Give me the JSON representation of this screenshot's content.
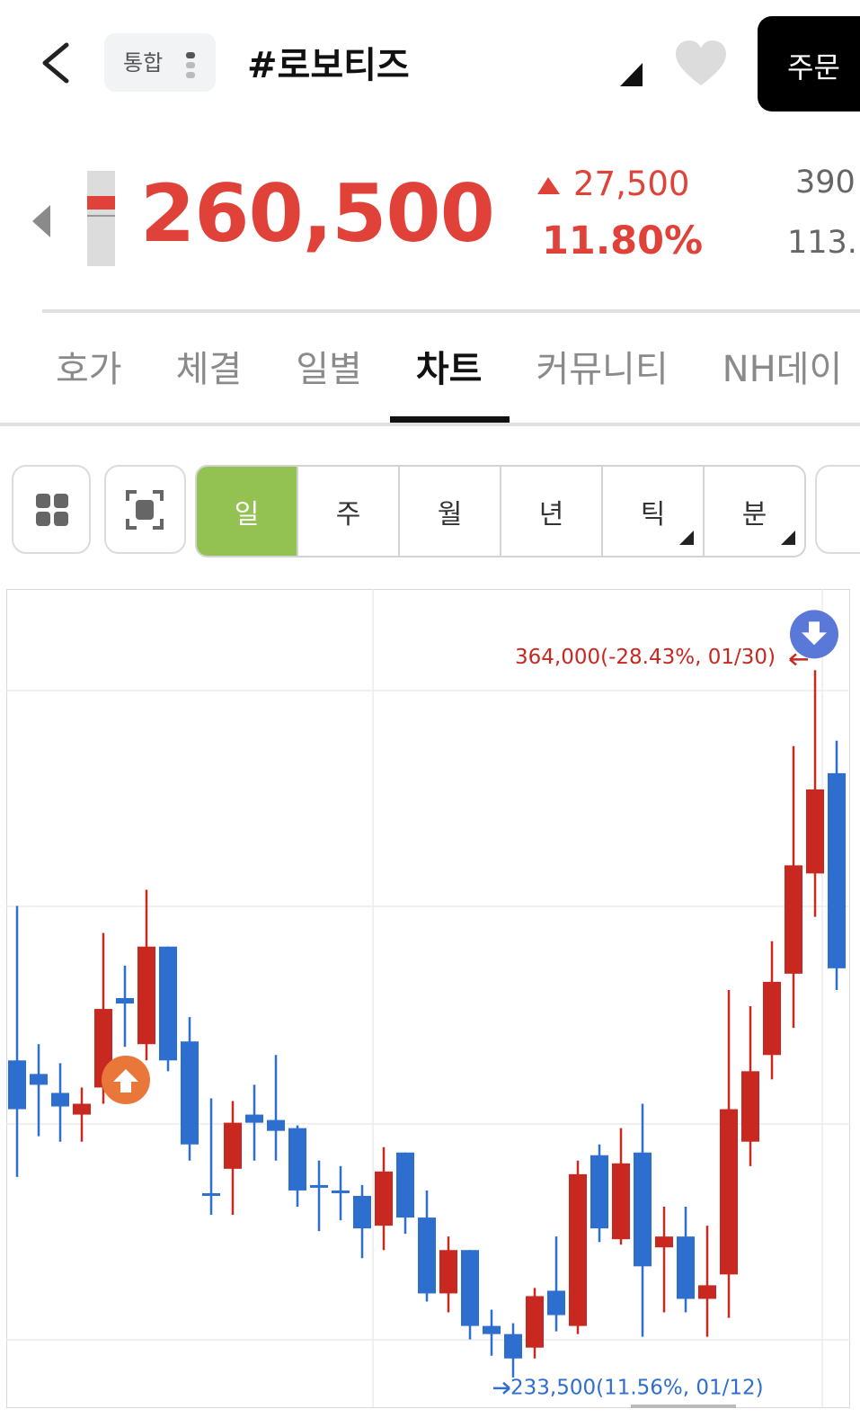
{
  "header": {
    "market": "통합",
    "title": "#로보티즈",
    "order_button": "주문"
  },
  "price": {
    "current": "260,500",
    "change": "27,500",
    "change_rate": "11.80%",
    "side_values": [
      "390",
      "113."
    ]
  },
  "tabs": {
    "items": [
      "호가",
      "체결",
      "일별",
      "차트",
      "커뮤니티",
      "NH데이"
    ],
    "selected": 3
  },
  "periods": {
    "items": [
      "일",
      "주",
      "월",
      "년",
      "틱",
      "분"
    ],
    "selected": 0,
    "with_menu": [
      4,
      5
    ]
  },
  "chart_data": {
    "type": "candlestick",
    "up_color": "#c8281f",
    "down_color": "#2e6ecf",
    "open": [
      292000,
      289500,
      286000,
      282000,
      287000,
      303500,
      295000,
      313000,
      295500,
      267500,
      272000,
      282000,
      281000,
      279500,
      269000,
      268000,
      267000,
      261500,
      275000,
      263000,
      249000,
      257000,
      243000,
      241500,
      239000,
      249500,
      243000,
      274500,
      259000,
      275000,
      257500,
      259500,
      248000,
      252500,
      277000,
      293000,
      308000,
      326500,
      345000
    ],
    "high": [
      320500,
      295000,
      291500,
      287000,
      315500,
      309500,
      323500,
      313000,
      300000,
      285000,
      284500,
      287500,
      293000,
      280000,
      273500,
      272500,
      269000,
      276000,
      275000,
      268000,
      259500,
      257000,
      246000,
      243500,
      250000,
      259500,
      273500,
      276500,
      279500,
      284000,
      265000,
      265000,
      261500,
      305000,
      302000,
      314000,
      350000,
      364000,
      351000
    ],
    "low": [
      270500,
      278000,
      277000,
      277000,
      284000,
      294500,
      292000,
      290000,
      273500,
      263500,
      263500,
      273500,
      273500,
      265000,
      260500,
      262500,
      255500,
      257000,
      260000,
      247500,
      245500,
      240500,
      237500,
      233500,
      237000,
      242000,
      241500,
      258500,
      258000,
      241000,
      245500,
      245500,
      241000,
      244500,
      272500,
      288500,
      298000,
      318500,
      305000
    ],
    "close": [
      283000,
      287500,
      283500,
      284000,
      301500,
      302500,
      313000,
      292000,
      276500,
      267000,
      280500,
      280500,
      279000,
      268000,
      268500,
      267500,
      261000,
      271500,
      263000,
      249000,
      257000,
      243000,
      241500,
      237000,
      248500,
      245000,
      271000,
      261000,
      273000,
      254000,
      259500,
      248000,
      250500,
      283000,
      290000,
      306500,
      328000,
      342000,
      309000
    ],
    "ylim": [
      228000,
      379000
    ],
    "annotations": [
      {
        "text": "364,000(-28.43%, 01/30)",
        "value": 364000,
        "color": "#c8281f"
      },
      {
        "text": "233,500(11.56%, 01/12)",
        "value": 233500,
        "color": "#2e6ecf"
      }
    ]
  }
}
